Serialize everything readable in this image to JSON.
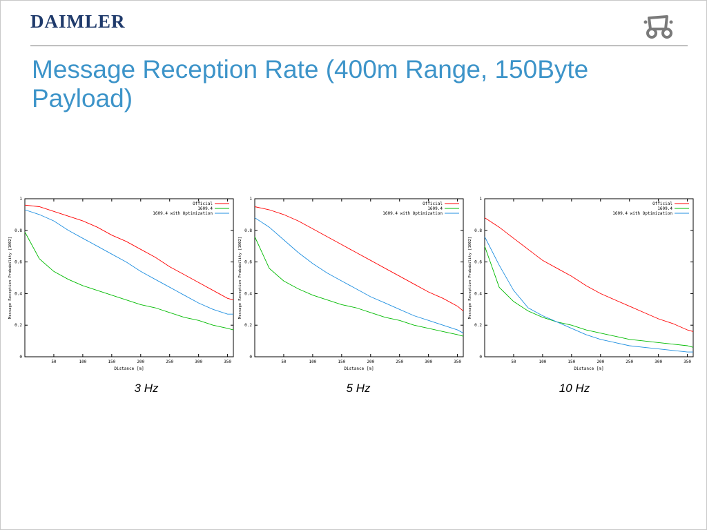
{
  "header": {
    "logo_text": "DAIMLER",
    "logo_icon": "car-icon",
    "title": "Message Reception Rate (400m Range, 150Byte Payload)"
  },
  "colors": {
    "title": "#3d94c9",
    "logo": "#1f3a6b",
    "official": "#ff0000",
    "1609.4": "#00bb00",
    "1609.4 with Optimization": "#1f8fe0"
  },
  "chart_data": [
    {
      "type": "line",
      "caption": "3 Hz",
      "xlabel": "Distance [m]",
      "ylabel": "Message Reception Probability [1002]",
      "xlim": [
        0,
        360
      ],
      "ylim": [
        0,
        1
      ],
      "xticks": [
        50,
        100,
        150,
        200,
        250,
        300,
        350
      ],
      "yticks": [
        0,
        0.2,
        0.4,
        0.6,
        0.8,
        1
      ],
      "legend_position": "top-right",
      "grid": false,
      "x": [
        0,
        25,
        50,
        75,
        100,
        125,
        150,
        175,
        200,
        225,
        250,
        275,
        300,
        325,
        350,
        360
      ],
      "series": [
        {
          "name": "Official",
          "color": "#ff0000",
          "values": [
            0.96,
            0.95,
            0.92,
            0.89,
            0.86,
            0.82,
            0.77,
            0.73,
            0.68,
            0.63,
            0.57,
            0.52,
            0.47,
            0.42,
            0.37,
            0.36
          ]
        },
        {
          "name": "1609.4",
          "color": "#00bb00",
          "values": [
            0.79,
            0.62,
            0.54,
            0.49,
            0.45,
            0.42,
            0.39,
            0.36,
            0.33,
            0.31,
            0.28,
            0.25,
            0.23,
            0.2,
            0.18,
            0.17
          ]
        },
        {
          "name": "1609.4 with Optimization",
          "color": "#1f8fe0",
          "values": [
            0.93,
            0.9,
            0.86,
            0.8,
            0.75,
            0.7,
            0.65,
            0.6,
            0.54,
            0.49,
            0.44,
            0.39,
            0.34,
            0.3,
            0.27,
            0.27
          ]
        }
      ]
    },
    {
      "type": "line",
      "caption": "5 Hz",
      "xlabel": "Distance [m]",
      "ylabel": "Message Reception Probability [1002]",
      "xlim": [
        0,
        360
      ],
      "ylim": [
        0,
        1
      ],
      "xticks": [
        50,
        100,
        150,
        200,
        250,
        300,
        350
      ],
      "yticks": [
        0,
        0.2,
        0.4,
        0.6,
        0.8,
        1
      ],
      "legend_position": "top-right",
      "grid": false,
      "x": [
        0,
        25,
        50,
        75,
        100,
        125,
        150,
        175,
        200,
        225,
        250,
        275,
        300,
        325,
        350,
        360
      ],
      "series": [
        {
          "name": "Official",
          "color": "#ff0000",
          "values": [
            0.95,
            0.93,
            0.9,
            0.86,
            0.81,
            0.76,
            0.71,
            0.66,
            0.61,
            0.56,
            0.51,
            0.46,
            0.41,
            0.37,
            0.32,
            0.29
          ]
        },
        {
          "name": "1609.4",
          "color": "#00bb00",
          "values": [
            0.76,
            0.56,
            0.48,
            0.43,
            0.39,
            0.36,
            0.33,
            0.31,
            0.28,
            0.25,
            0.23,
            0.2,
            0.18,
            0.16,
            0.14,
            0.13
          ]
        },
        {
          "name": "1609.4 with Optimization",
          "color": "#1f8fe0",
          "values": [
            0.88,
            0.82,
            0.74,
            0.66,
            0.59,
            0.53,
            0.48,
            0.43,
            0.38,
            0.34,
            0.3,
            0.26,
            0.23,
            0.2,
            0.17,
            0.15
          ]
        }
      ]
    },
    {
      "type": "line",
      "caption": "10 Hz",
      "xlabel": "Distance [m]",
      "ylabel": "Message Reception Probability [1002]",
      "xlim": [
        0,
        360
      ],
      "ylim": [
        0,
        1
      ],
      "xticks": [
        50,
        100,
        150,
        200,
        250,
        300,
        350
      ],
      "yticks": [
        0,
        0.2,
        0.4,
        0.6,
        0.8,
        1
      ],
      "legend_position": "top-right",
      "grid": false,
      "x": [
        0,
        25,
        50,
        75,
        100,
        125,
        150,
        175,
        200,
        225,
        250,
        275,
        300,
        325,
        350,
        360
      ],
      "series": [
        {
          "name": "Official",
          "color": "#ff0000",
          "values": [
            0.88,
            0.82,
            0.75,
            0.68,
            0.61,
            0.56,
            0.51,
            0.45,
            0.4,
            0.36,
            0.32,
            0.28,
            0.24,
            0.21,
            0.17,
            0.16
          ]
        },
        {
          "name": "1609.4",
          "color": "#00bb00",
          "values": [
            0.7,
            0.44,
            0.35,
            0.29,
            0.25,
            0.22,
            0.2,
            0.17,
            0.15,
            0.13,
            0.11,
            0.1,
            0.09,
            0.08,
            0.07,
            0.06
          ]
        },
        {
          "name": "1609.4 with Optimization",
          "color": "#1f8fe0",
          "values": [
            0.76,
            0.58,
            0.42,
            0.31,
            0.26,
            0.22,
            0.18,
            0.14,
            0.11,
            0.09,
            0.07,
            0.06,
            0.05,
            0.04,
            0.03,
            0.03
          ]
        }
      ]
    }
  ]
}
